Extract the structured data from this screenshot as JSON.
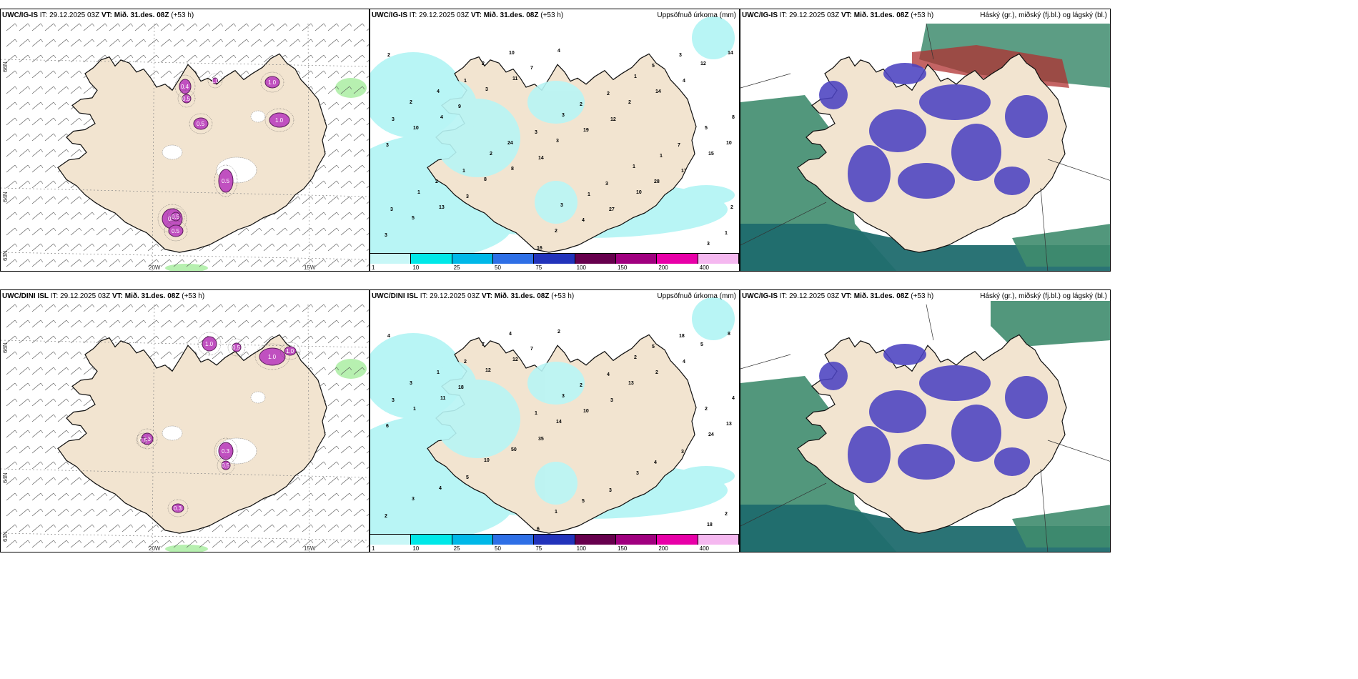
{
  "panels": [
    {
      "model": "UWC/IG-IS",
      "it_label": "IT:",
      "it": "29.12.2025 03Z",
      "vt_label": "VT:",
      "vt": "Mið. 31.des. 08Z",
      "lead": "(+53 h)",
      "right_title": ""
    },
    {
      "model": "UWC/IG-IS",
      "it_label": "IT:",
      "it": "29.12.2025 03Z",
      "vt_label": "VT:",
      "vt": "Mið. 31.des. 08Z",
      "lead": "(+53 h)",
      "right_title": "Uppsöfnuð úrkoma (mm)"
    },
    {
      "model": "UWC/IG-IS",
      "it_label": "IT:",
      "it": "29.12.2025 03Z",
      "vt_label": "VT:",
      "vt": "Mið. 31.des. 08Z",
      "lead": "(+53 h)",
      "right_title": "Háský (gr.), miðský (fj.bl.) og lágský (bl.)"
    },
    {
      "model": "UWC/DINI ISL",
      "it_label": "IT:",
      "it": "29.12.2025 03Z",
      "vt_label": "VT:",
      "vt": "Mið. 31.des. 08Z",
      "lead": "(+53 h)",
      "right_title": ""
    },
    {
      "model": "UWC/DINI ISL",
      "it_label": "IT:",
      "it": "29.12.2025 03Z",
      "vt_label": "VT:",
      "vt": "Mið. 31.des. 08Z",
      "lead": "(+53 h)",
      "right_title": "Uppsöfnuð úrkoma (mm)"
    },
    {
      "model": "UWC/IG-IS",
      "it_label": "IT:",
      "it": "29.12.2025 03Z",
      "vt_label": "VT:",
      "vt": "Mið. 31.des. 08Z",
      "lead": "(+53 h)",
      "right_title": "Háský (gr.), miðský (fj.bl.) og lágský (bl.)"
    }
  ],
  "axes": {
    "lon_20": "20W",
    "lon_15": "15W",
    "lat_66": "66N",
    "lat_64": "64N",
    "lat_63": "63N"
  },
  "colorbar": {
    "ticks": [
      "1",
      "10",
      "25",
      "50",
      "75",
      "100",
      "150",
      "200",
      "400"
    ],
    "colors": [
      "#c8f7f7",
      "#00e8e8",
      "#00b8e8",
      "#2e6fe6",
      "#2233bb",
      "#66004d",
      "#a0007f",
      "#e800a8",
      "#f5b8f0"
    ]
  },
  "ice_labels_top": [
    "0.4",
    "1.0",
    "1.0",
    "0.5",
    "0.5",
    "0.5",
    "0.5",
    "0.5",
    "1.0",
    "0.5"
  ],
  "ice_labels_bottom": [
    "1.0",
    "1.0",
    "0.5",
    "1.0",
    "0.3",
    "0.5",
    "0.3",
    "0.3",
    "0.5"
  ],
  "precip_top": [
    "2",
    "4",
    "14",
    "7",
    "12",
    "11",
    "4",
    "3",
    "14",
    "9",
    "2",
    "4",
    "12",
    "10",
    "19",
    "3",
    "3",
    "10",
    "14",
    "15",
    "8",
    "17",
    "8",
    "28",
    "3",
    "10",
    "13",
    "27",
    "5",
    "4",
    "3",
    "2",
    "1",
    "16",
    "3",
    "10",
    "3",
    "2",
    "5",
    "1",
    "1",
    "4",
    "2",
    "2",
    "2",
    "3",
    "3",
    "8",
    "3",
    "5",
    "24",
    "7",
    "2",
    "1",
    "1",
    "1",
    "2",
    "3",
    "1",
    "1",
    "3",
    "3",
    "2"
  ],
  "precip_bottom": [
    "4",
    "2",
    "8",
    "7",
    "5",
    "12",
    "4",
    "12",
    "2",
    "18",
    "13",
    "11",
    "3",
    "1",
    "10",
    "6",
    "14",
    "13",
    "35",
    "24",
    "50",
    "3",
    "10",
    "4",
    "5",
    "3",
    "4",
    "3",
    "3",
    "5",
    "2",
    "1",
    "2",
    "6",
    "18",
    "4",
    "18",
    "7",
    "5",
    "2",
    "2",
    "1",
    "4",
    "3",
    "2",
    "3",
    "3",
    "4",
    "1",
    "2"
  ],
  "colors": {
    "land": "#f2e4d0",
    "sea": "#ffffff",
    "precip_light": "#b8f5f5",
    "ice": "#c050c0",
    "cloud_low": "#1f6b6e",
    "cloud_mid": "#3f8c6e",
    "cloud_high": "#b03030",
    "cloud_blue": "#4b42c0"
  }
}
